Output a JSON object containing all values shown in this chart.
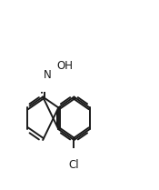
{
  "background": "#ffffff",
  "line_color": "#1a1a1a",
  "lw": 1.4,
  "font_size": 8.5,
  "bl": 0.115,
  "c9": [
    0.465,
    0.26
  ],
  "atoms": {
    "Cl": {
      "label": "Cl",
      "ha": "center",
      "va": "top"
    },
    "N": {
      "label": "N",
      "ha": "left",
      "va": "center"
    },
    "OH": {
      "label": "OH",
      "ha": "left",
      "va": "center"
    }
  }
}
